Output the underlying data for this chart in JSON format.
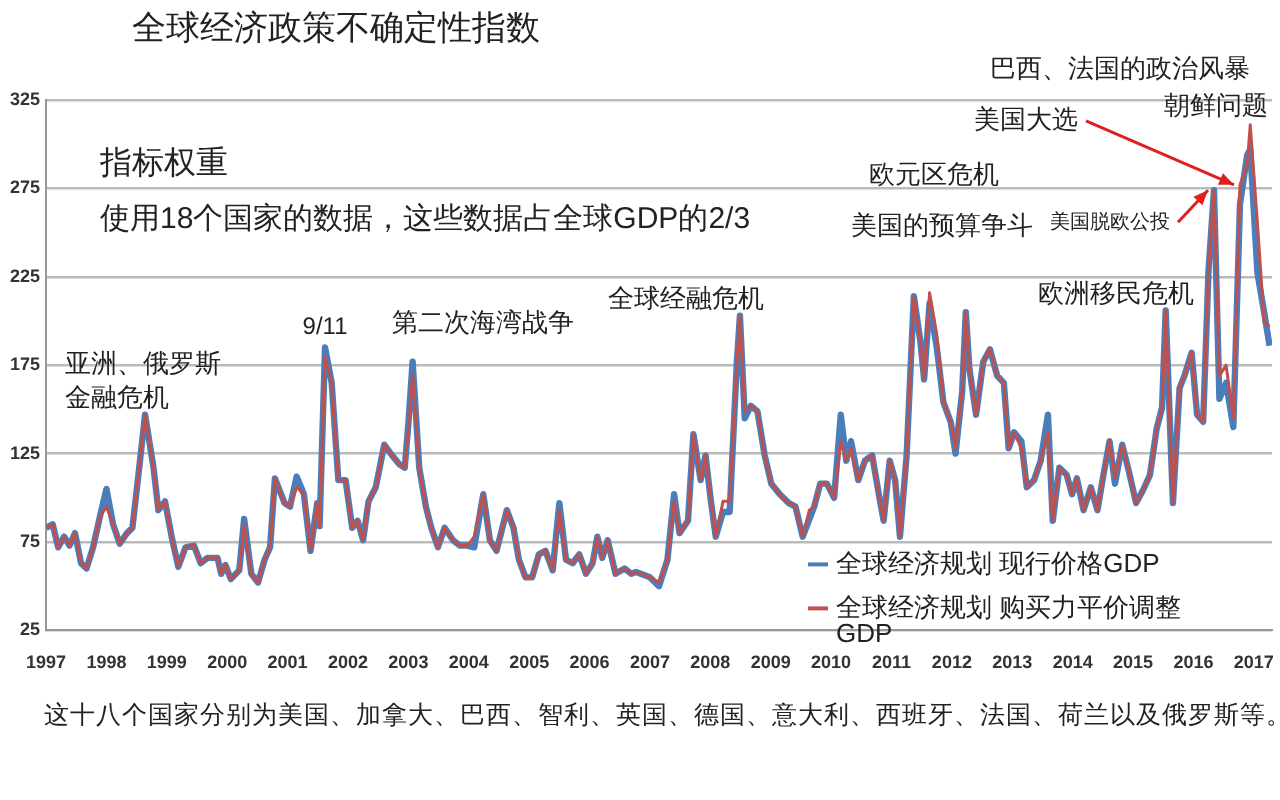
{
  "chart_data": {
    "type": "line",
    "title": "全球经济政策不确定性指数",
    "x": [
      1997.0,
      1997.11,
      1997.2,
      1997.3,
      1997.39,
      1997.48,
      1997.58,
      1997.67,
      1997.78,
      1997.89,
      1998.0,
      1998.11,
      1998.22,
      1998.34,
      1998.43,
      1998.53,
      1998.64,
      1998.78,
      1998.86,
      1998.97,
      1999.08,
      1999.19,
      1999.31,
      1999.45,
      1999.56,
      1999.67,
      1999.84,
      1999.9,
      1999.97,
      2000.06,
      2000.2,
      2000.28,
      2000.4,
      2000.51,
      2000.62,
      2000.71,
      2000.79,
      2000.95,
      2001.04,
      2001.15,
      2001.27,
      2001.38,
      2001.49,
      2001.53,
      2001.62,
      2001.73,
      2001.84,
      2001.96,
      2002.07,
      2002.16,
      2002.25,
      2002.34,
      2002.46,
      2002.6,
      2002.73,
      2002.85,
      2002.94,
      2003.0,
      2003.07,
      2003.18,
      2003.29,
      2003.38,
      2003.49,
      2003.6,
      2003.74,
      2003.85,
      2003.98,
      2004.09,
      2004.24,
      2004.35,
      2004.46,
      2004.63,
      2004.74,
      2004.83,
      2004.94,
      2005.05,
      2005.16,
      2005.27,
      2005.39,
      2005.5,
      2005.61,
      2005.72,
      2005.83,
      2005.94,
      2006.05,
      2006.13,
      2006.21,
      2006.3,
      2006.43,
      2006.58,
      2006.69,
      2006.77,
      2007.0,
      2007.15,
      2007.29,
      2007.4,
      2007.49,
      2007.63,
      2007.72,
      2007.84,
      2007.92,
      2008.01,
      2008.09,
      2008.21,
      2008.32,
      2008.44,
      2008.49,
      2008.57,
      2008.67,
      2008.78,
      2008.9,
      2009.01,
      2009.15,
      2009.3,
      2009.41,
      2009.53,
      2009.64,
      2009.72,
      2009.82,
      2009.93,
      2010.05,
      2010.16,
      2010.25,
      2010.33,
      2010.45,
      2010.56,
      2010.68,
      2010.79,
      2010.87,
      2010.97,
      2011.06,
      2011.14,
      2011.25,
      2011.37,
      2011.48,
      2011.54,
      2011.63,
      2011.75,
      2011.86,
      2011.98,
      2012.06,
      2012.17,
      2012.23,
      2012.29,
      2012.4,
      2012.52,
      2012.63,
      2012.75,
      2012.86,
      2012.94,
      2013.03,
      2013.15,
      2013.24,
      2013.36,
      2013.47,
      2013.59,
      2013.67,
      2013.78,
      2013.9,
      2013.99,
      2014.07,
      2014.18,
      2014.3,
      2014.41,
      2014.51,
      2014.61,
      2014.7,
      2014.82,
      2014.93,
      2015.05,
      2015.16,
      2015.28,
      2015.39,
      2015.48,
      2015.54,
      2015.66,
      2015.77,
      2015.85,
      2015.97,
      2016.06,
      2016.16,
      2016.25,
      2016.34,
      2016.43,
      2016.54,
      2016.66,
      2016.77,
      2016.89,
      2016.94,
      2017.06,
      2017.17,
      2017.26
    ],
    "series": [
      {
        "name": "全球经济规划 现行价格GDP",
        "color": "#4a7ebb",
        "values": [
          83,
          85,
          72,
          78,
          73,
          80,
          63,
          60,
          72,
          89,
          105,
          85,
          74,
          80,
          83,
          113,
          147,
          117,
          93,
          98,
          78,
          61,
          72,
          73,
          63,
          66,
          66,
          57,
          62,
          54,
          59,
          88,
          57,
          52,
          65,
          72,
          111,
          97,
          95,
          112,
          102,
          70,
          97,
          84,
          185,
          165,
          110,
          110,
          83,
          87,
          76,
          98,
          106,
          130,
          124,
          119,
          117,
          142,
          177,
          117,
          95,
          83,
          72,
          83,
          76,
          73,
          73,
          72,
          102,
          76,
          70,
          93,
          83,
          65,
          55,
          55,
          68,
          70,
          59,
          97,
          65,
          63,
          68,
          57,
          63,
          78,
          66,
          76,
          57,
          60,
          57,
          58,
          55,
          50,
          65,
          102,
          80,
          87,
          136,
          110,
          124,
          98,
          78,
          92,
          92,
          177,
          203,
          145,
          152,
          149,
          124,
          108,
          102,
          97,
          95,
          78,
          88,
          95,
          108,
          108,
          100,
          147,
          121,
          132,
          110,
          121,
          124,
          102,
          87,
          121,
          110,
          78,
          124,
          214,
          188,
          167,
          210,
          185,
          154,
          143,
          125,
          160,
          205,
          173,
          147,
          177,
          184,
          169,
          165,
          128,
          137,
          132,
          106,
          110,
          121,
          147,
          87,
          117,
          113,
          102,
          111,
          93,
          106,
          93,
          113,
          132,
          108,
          130,
          115,
          97,
          104,
          113,
          139,
          151,
          206,
          97,
          162,
          169,
          182,
          147,
          143,
          229,
          274,
          156,
          165,
          140,
          266,
          294,
          297,
          227,
          205,
          186
        ]
      },
      {
        "name": "全球经济规划 购买力平价调整GDP",
        "color": "#c0504d",
        "values": [
          83,
          85,
          72,
          78,
          73,
          80,
          63,
          60,
          72,
          89,
          95,
          85,
          74,
          80,
          83,
          113,
          147,
          117,
          93,
          98,
          78,
          61,
          72,
          73,
          63,
          66,
          66,
          57,
          62,
          54,
          59,
          85,
          57,
          52,
          65,
          72,
          111,
          97,
          95,
          106,
          102,
          70,
          97,
          84,
          180,
          165,
          110,
          110,
          83,
          87,
          76,
          98,
          106,
          130,
          124,
          119,
          117,
          139,
          170,
          117,
          95,
          83,
          72,
          83,
          76,
          73,
          73,
          78,
          102,
          76,
          70,
          93,
          83,
          65,
          55,
          55,
          68,
          70,
          59,
          93,
          65,
          63,
          68,
          57,
          63,
          78,
          66,
          76,
          57,
          60,
          57,
          58,
          55,
          52,
          65,
          98,
          80,
          87,
          136,
          110,
          124,
          98,
          78,
          98,
          98,
          177,
          203,
          149,
          152,
          149,
          124,
          108,
          102,
          97,
          95,
          78,
          93,
          95,
          108,
          108,
          100,
          132,
          121,
          128,
          110,
          121,
          124,
          102,
          87,
          121,
          110,
          78,
          124,
          214,
          188,
          167,
          216,
          192,
          154,
          143,
          128,
          160,
          205,
          173,
          147,
          177,
          184,
          169,
          165,
          128,
          137,
          128,
          106,
          110,
          121,
          137,
          87,
          117,
          113,
          102,
          111,
          93,
          106,
          93,
          113,
          132,
          111,
          130,
          115,
          97,
          104,
          113,
          139,
          151,
          206,
          97,
          162,
          169,
          182,
          147,
          143,
          229,
          274,
          169,
          175,
          145,
          277,
          288,
          311,
          255,
          199,
          197
        ]
      }
    ],
    "xlim": [
      1997,
      2017.3
    ],
    "xticks": [
      1997,
      1998,
      1999,
      2000,
      2001,
      2002,
      2003,
      2004,
      2005,
      2006,
      2007,
      2008,
      2009,
      2010,
      2011,
      2012,
      2013,
      2014,
      2015,
      2016,
      2017
    ],
    "ylim": [
      25,
      325
    ],
    "yticks": [
      25,
      75,
      125,
      175,
      225,
      275,
      325
    ],
    "grid": "y",
    "legend": "bottom right",
    "marker": "none",
    "line_style": "solid",
    "annotations": [
      "指标权重",
      "使用18个国家的数据，这些数据占全球GDP的2/3",
      "巴西、法国的政治风暴",
      "欧元区危机",
      "这十八个国家分别为美国、加拿大、巴西、智利、英国、德国、意大利、西班牙、法国、荷兰以及俄罗斯等。",
      {
        "text": "亚洲、俄罗斯金融危机",
        "x": 1998.64,
        "y": 147
      },
      {
        "text": "9/11",
        "x": 2001.62,
        "y": 185
      },
      {
        "text": "第二次海湾战争",
        "x": 2003.07,
        "y": 177
      },
      {
        "text": "全球经融危机",
        "x": 2008.49,
        "y": 203
      },
      {
        "text": "美国的预算争斗",
        "x": 2011.63,
        "y": 216
      },
      {
        "text": "欧洲移民危机",
        "x": 2015.54,
        "y": 206
      },
      {
        "text": "美国脱欧公投",
        "x": 2016.34,
        "y": 274
      },
      {
        "text": "美国大选",
        "x": 2016.77,
        "y": 277
      },
      {
        "text": "朝鲜问题",
        "x": 2016.94,
        "y": 311
      }
    ]
  }
}
